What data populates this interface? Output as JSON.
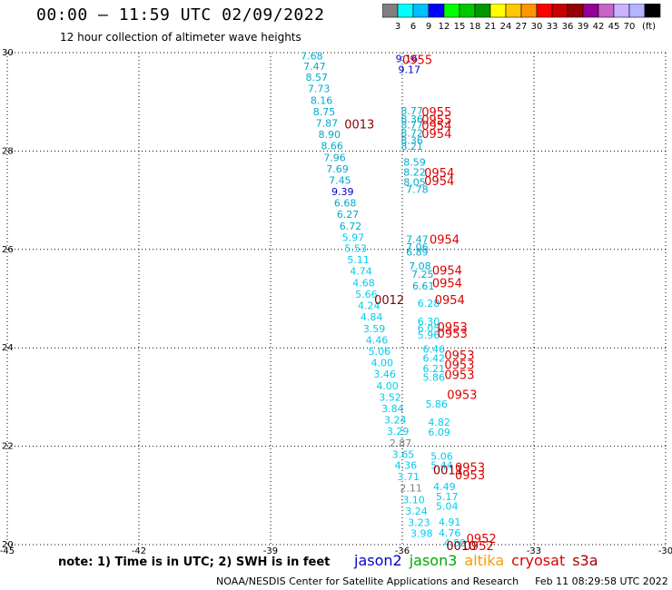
{
  "header": {
    "title": "00:00 — 11:59 UTC 02/09/2022",
    "subtitle": "12 hour collection of altimeter wave heights"
  },
  "colorbar": {
    "unit": "(ft)",
    "colors": [
      "#808080",
      "#00ffff",
      "#00bfff",
      "#0000ff",
      "#00ff00",
      "#00c800",
      "#009600",
      "#ffff00",
      "#ffc800",
      "#ff9600",
      "#ff0000",
      "#c80000",
      "#960000",
      "#960096",
      "#c864c8",
      "#c8b4ff",
      "#b4b4ff",
      "#000000"
    ],
    "labels": [
      "3",
      "6",
      "9",
      "12",
      "15",
      "18",
      "21",
      "24",
      "27",
      "30",
      "33",
      "36",
      "39",
      "42",
      "45",
      "70"
    ]
  },
  "note": "note: 1) Time is in UTC; 2) SWH is in feet",
  "legend": [
    {
      "name": "jason2",
      "color": "#0000cc"
    },
    {
      "name": "jason3",
      "color": "#00aa00"
    },
    {
      "name": "altika",
      "color": "#ff9900"
    },
    {
      "name": "cryosat",
      "color": "#dd0000"
    },
    {
      "name": "s3a",
      "color": "#aa0000"
    }
  ],
  "footer": {
    "credit": "NOAA/NESDIS Center for Satellite Applications and Research",
    "timestamp": "Feb 11 08:29:58 UTC 2022"
  },
  "chart_data": {
    "type": "scatter",
    "xlim": [
      -45,
      -30
    ],
    "ylim": [
      20,
      30
    ],
    "xticks": [
      -45,
      -42,
      -39,
      -36,
      -33,
      -30
    ],
    "xtick_labels": [
      "-45",
      "-42",
      "-39",
      "-36",
      "-33",
      "-30"
    ],
    "yticks": [
      20,
      22,
      24,
      26,
      28,
      30
    ],
    "ytick_labels": [
      "20",
      "22",
      "24",
      "26",
      "28",
      "30"
    ],
    "grid": true,
    "points": [
      {
        "x": -38.06,
        "y": 29.94,
        "label": "7.68",
        "color": "#00aacc"
      },
      {
        "x": -38.0,
        "y": 29.72,
        "label": "7.47",
        "color": "#00aacc"
      },
      {
        "x": -37.95,
        "y": 29.5,
        "label": "8.57",
        "color": "#00aacc"
      },
      {
        "x": -37.9,
        "y": 29.27,
        "label": "7.73",
        "color": "#00aacc"
      },
      {
        "x": -37.84,
        "y": 29.03,
        "label": "8.16",
        "color": "#00aacc"
      },
      {
        "x": -37.78,
        "y": 28.8,
        "label": "8.75",
        "color": "#00aacc"
      },
      {
        "x": -37.72,
        "y": 28.57,
        "label": "7.87",
        "color": "#00aacc"
      },
      {
        "x": -37.66,
        "y": 28.34,
        "label": "8.90",
        "color": "#00aacc"
      },
      {
        "x": -37.6,
        "y": 28.11,
        "label": "8.66",
        "color": "#00aacc"
      },
      {
        "x": -37.54,
        "y": 27.87,
        "label": "7.96",
        "color": "#00aacc"
      },
      {
        "x": -37.48,
        "y": 27.64,
        "label": "7.69",
        "color": "#00aacc"
      },
      {
        "x": -37.42,
        "y": 27.41,
        "label": "7.45",
        "color": "#00aacc"
      },
      {
        "x": -37.36,
        "y": 27.18,
        "label": "9.39",
        "color": "#0000cc"
      },
      {
        "x": -37.3,
        "y": 26.95,
        "label": "6.68",
        "color": "#00aacc"
      },
      {
        "x": -37.24,
        "y": 26.72,
        "label": "6.27",
        "color": "#00aacc"
      },
      {
        "x": -37.18,
        "y": 26.48,
        "label": "6.72",
        "color": "#00aacc"
      },
      {
        "x": -37.12,
        "y": 26.25,
        "label": "5.97",
        "color": "#00ccee"
      },
      {
        "x": -37.06,
        "y": 26.02,
        "label": "5.53",
        "color": "#00ccee"
      },
      {
        "x": -37.0,
        "y": 25.79,
        "label": "5.11",
        "color": "#00ccee"
      },
      {
        "x": -36.94,
        "y": 25.56,
        "label": "4.74",
        "color": "#00ccee"
      },
      {
        "x": -36.88,
        "y": 25.32,
        "label": "4.68",
        "color": "#00ccee"
      },
      {
        "x": -36.82,
        "y": 25.09,
        "label": "5.66",
        "color": "#00ccee"
      },
      {
        "x": -36.76,
        "y": 24.86,
        "label": "4.24",
        "color": "#00ccee"
      },
      {
        "x": -36.7,
        "y": 24.63,
        "label": "4.84",
        "color": "#00ccee"
      },
      {
        "x": -36.64,
        "y": 24.39,
        "label": "3.59",
        "color": "#00ccee"
      },
      {
        "x": -36.58,
        "y": 24.16,
        "label": "4.46",
        "color": "#00ccee"
      },
      {
        "x": -36.52,
        "y": 23.93,
        "label": "5.06",
        "color": "#00ccee"
      },
      {
        "x": -36.46,
        "y": 23.7,
        "label": "4.00",
        "color": "#00ccee"
      },
      {
        "x": -36.4,
        "y": 23.47,
        "label": "3.46",
        "color": "#00ccee"
      },
      {
        "x": -36.34,
        "y": 23.23,
        "label": "4.00",
        "color": "#00ccee"
      },
      {
        "x": -36.28,
        "y": 23.0,
        "label": "3.52",
        "color": "#00ccee"
      },
      {
        "x": -36.22,
        "y": 22.77,
        "label": "3.84",
        "color": "#00ccee"
      },
      {
        "x": -36.16,
        "y": 22.54,
        "label": "3.24",
        "color": "#00ccee"
      },
      {
        "x": -36.1,
        "y": 22.31,
        "label": "3.29",
        "color": "#00ccee"
      },
      {
        "x": -36.04,
        "y": 22.07,
        "label": "2.87",
        "color": "#808080"
      },
      {
        "x": -35.98,
        "y": 21.84,
        "label": "3.65",
        "color": "#00ccee"
      },
      {
        "x": -35.92,
        "y": 21.61,
        "label": "4.36",
        "color": "#00ccee"
      },
      {
        "x": -35.86,
        "y": 21.38,
        "label": "3.71",
        "color": "#00ccee"
      },
      {
        "x": -35.8,
        "y": 21.15,
        "label": "2.11",
        "color": "#808080"
      },
      {
        "x": -35.74,
        "y": 20.91,
        "label": "3.10",
        "color": "#00ccee"
      },
      {
        "x": -35.68,
        "y": 20.68,
        "label": "3.24",
        "color": "#00ccee"
      },
      {
        "x": -35.62,
        "y": 20.45,
        "label": "3.23",
        "color": "#00ccee"
      },
      {
        "x": -35.56,
        "y": 20.23,
        "label": "3.98",
        "color": "#00ccee"
      },
      {
        "x": -35.9,
        "y": 29.88,
        "label": "9.16",
        "color": "#0000cc"
      },
      {
        "x": -35.84,
        "y": 29.66,
        "label": "9.17",
        "color": "#0000cc"
      },
      {
        "x": -35.78,
        "y": 28.82,
        "label": "8.77",
        "color": "#00aacc"
      },
      {
        "x": -35.78,
        "y": 28.65,
        "label": "8.36",
        "color": "#00aacc"
      },
      {
        "x": -35.78,
        "y": 28.53,
        "label": "8.77",
        "color": "#00aacc"
      },
      {
        "x": -35.78,
        "y": 28.37,
        "label": "8.72",
        "color": "#00aacc"
      },
      {
        "x": -35.78,
        "y": 28.22,
        "label": "8.36",
        "color": "#00aacc"
      },
      {
        "x": -35.78,
        "y": 28.1,
        "label": "8.21",
        "color": "#00aacc"
      },
      {
        "x": -35.72,
        "y": 27.78,
        "label": "8.59",
        "color": "#00aacc"
      },
      {
        "x": -35.72,
        "y": 27.57,
        "label": "8.22",
        "color": "#00aacc"
      },
      {
        "x": -35.72,
        "y": 27.37,
        "label": "8.05",
        "color": "#00aacc"
      },
      {
        "x": -35.66,
        "y": 27.22,
        "label": "7.78",
        "color": "#00aacc"
      },
      {
        "x": -35.66,
        "y": 26.21,
        "label": "7.47",
        "color": "#00aacc"
      },
      {
        "x": -35.66,
        "y": 26.05,
        "label": "7.06",
        "color": "#00aacc"
      },
      {
        "x": -35.66,
        "y": 25.95,
        "label": "6.89",
        "color": "#00aacc"
      },
      {
        "x": -35.6,
        "y": 25.66,
        "label": "7.08",
        "color": "#00aacc"
      },
      {
        "x": -35.54,
        "y": 25.5,
        "label": "7.25",
        "color": "#00aacc"
      },
      {
        "x": -35.52,
        "y": 25.26,
        "label": "6.61",
        "color": "#00aacc"
      },
      {
        "x": -35.4,
        "y": 24.91,
        "label": "6.28",
        "color": "#00ccee"
      },
      {
        "x": -35.4,
        "y": 24.54,
        "label": "6.30",
        "color": "#00ccee"
      },
      {
        "x": -35.4,
        "y": 24.4,
        "label": "6.05",
        "color": "#00ccee"
      },
      {
        "x": -35.4,
        "y": 24.26,
        "label": "5.96",
        "color": "#00ccee"
      },
      {
        "x": -35.28,
        "y": 23.98,
        "label": "6.46",
        "color": "#00ccee"
      },
      {
        "x": -35.28,
        "y": 23.79,
        "label": "6.42",
        "color": "#00ccee"
      },
      {
        "x": -35.28,
        "y": 23.58,
        "label": "6.21",
        "color": "#00ccee"
      },
      {
        "x": -35.28,
        "y": 23.4,
        "label": "5.86",
        "color": "#00ccee"
      },
      {
        "x": -35.22,
        "y": 22.86,
        "label": "5.86",
        "color": "#00ccee"
      },
      {
        "x": -35.16,
        "y": 22.49,
        "label": "4.82",
        "color": "#00ccee"
      },
      {
        "x": -35.16,
        "y": 22.29,
        "label": "6.09",
        "color": "#00ccee"
      },
      {
        "x": -35.1,
        "y": 21.8,
        "label": "5.06",
        "color": "#00ccee"
      },
      {
        "x": -35.1,
        "y": 21.61,
        "label": "5.44",
        "color": "#00ccee"
      },
      {
        "x": -35.04,
        "y": 21.18,
        "label": "4.49",
        "color": "#00ccee"
      },
      {
        "x": -34.98,
        "y": 20.98,
        "label": "5.17",
        "color": "#00ccee"
      },
      {
        "x": -34.98,
        "y": 20.78,
        "label": "5.04",
        "color": "#00ccee"
      },
      {
        "x": -34.92,
        "y": 20.46,
        "label": "4.91",
        "color": "#00ccee"
      },
      {
        "x": -34.92,
        "y": 20.24,
        "label": "4.76",
        "color": "#00ccee"
      },
      {
        "x": -34.8,
        "y": 20.04,
        "label": "4.59",
        "color": "#00ccee"
      }
    ],
    "annotations": [
      {
        "x": -36.0,
        "y": 29.86,
        "label": "0955",
        "color": "#dd0000"
      },
      {
        "x": -35.56,
        "y": 28.8,
        "label": "0955",
        "color": "#dd0000"
      },
      {
        "x": -35.56,
        "y": 28.64,
        "label": "0955",
        "color": "#dd0000"
      },
      {
        "x": -35.56,
        "y": 28.52,
        "label": "0954",
        "color": "#dd0000"
      },
      {
        "x": -35.56,
        "y": 28.36,
        "label": "0954",
        "color": "#dd0000"
      },
      {
        "x": -37.32,
        "y": 28.55,
        "label": "0013",
        "color": "#880000"
      },
      {
        "x": -35.5,
        "y": 27.56,
        "label": "0954",
        "color": "#dd0000"
      },
      {
        "x": -35.5,
        "y": 27.4,
        "label": "0954",
        "color": "#dd0000"
      },
      {
        "x": -35.38,
        "y": 26.21,
        "label": "0954",
        "color": "#dd0000"
      },
      {
        "x": -35.32,
        "y": 25.58,
        "label": "0954",
        "color": "#dd0000"
      },
      {
        "x": -35.32,
        "y": 25.32,
        "label": "0954",
        "color": "#dd0000"
      },
      {
        "x": -35.26,
        "y": 24.98,
        "label": "0954",
        "color": "#dd0000"
      },
      {
        "x": -36.64,
        "y": 24.98,
        "label": "0012",
        "color": "#880000"
      },
      {
        "x": -35.2,
        "y": 24.43,
        "label": "0953",
        "color": "#dd0000"
      },
      {
        "x": -35.2,
        "y": 24.3,
        "label": "0953",
        "color": "#dd0000"
      },
      {
        "x": -35.04,
        "y": 23.86,
        "label": "0953",
        "color": "#dd0000"
      },
      {
        "x": -35.04,
        "y": 23.66,
        "label": "0953",
        "color": "#dd0000"
      },
      {
        "x": -35.04,
        "y": 23.46,
        "label": "0953",
        "color": "#dd0000"
      },
      {
        "x": -34.98,
        "y": 23.05,
        "label": "0953",
        "color": "#dd0000"
      },
      {
        "x": -34.8,
        "y": 21.58,
        "label": "0953",
        "color": "#dd0000"
      },
      {
        "x": -34.8,
        "y": 21.42,
        "label": "0953",
        "color": "#dd0000"
      },
      {
        "x": -35.3,
        "y": 21.52,
        "label": "0011",
        "color": "#880000"
      },
      {
        "x": -34.54,
        "y": 20.13,
        "label": "0952",
        "color": "#dd0000"
      },
      {
        "x": -34.6,
        "y": 19.98,
        "label": "0952",
        "color": "#dd0000"
      },
      {
        "x": -35.0,
        "y": 19.98,
        "label": "0010",
        "color": "#880000"
      }
    ]
  }
}
